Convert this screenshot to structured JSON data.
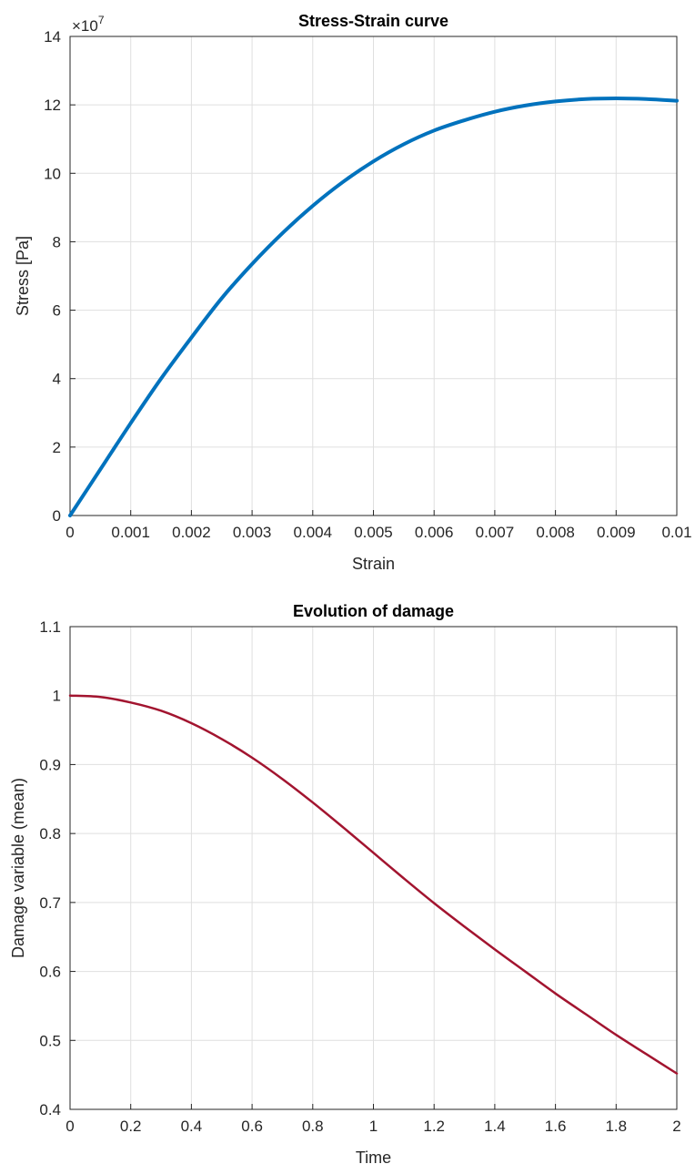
{
  "chart_data": [
    {
      "type": "line",
      "title": "Stress-Strain curve",
      "xlabel": "Strain",
      "ylabel": "Stress [Pa]",
      "y_exponent_label": "×10",
      "y_exponent": "7",
      "xlim": [
        0,
        0.01
      ],
      "ylim": [
        0,
        14
      ],
      "y_scale_factor": 10000000,
      "xticks": [
        "0",
        "0.001",
        "0.002",
        "0.003",
        "0.004",
        "0.005",
        "0.006",
        "0.007",
        "0.008",
        "0.009",
        "0.01"
      ],
      "yticks": [
        "0",
        "2",
        "4",
        "6",
        "8",
        "10",
        "12",
        "14"
      ],
      "grid": true,
      "series": [
        {
          "color": "#0072BD",
          "x": [
            0,
            0.0005,
            0.001,
            0.0015,
            0.002,
            0.0025,
            0.003,
            0.0035,
            0.004,
            0.0045,
            0.005,
            0.0055,
            0.006,
            0.0065,
            0.007,
            0.0075,
            0.008,
            0.0085,
            0.009,
            0.0095,
            0.01
          ],
          "y": [
            0,
            1.35,
            2.7,
            4.0,
            5.2,
            6.35,
            7.35,
            8.25,
            9.05,
            9.75,
            10.35,
            10.85,
            11.25,
            11.55,
            11.8,
            11.98,
            12.1,
            12.17,
            12.19,
            12.17,
            12.12
          ]
        }
      ]
    },
    {
      "type": "line",
      "title": "Evolution of damage",
      "xlabel": "Time",
      "ylabel": "Damage variable (mean)",
      "xlim": [
        0,
        2
      ],
      "ylim": [
        0.4,
        1.1
      ],
      "xticks": [
        "0",
        "0.2",
        "0.4",
        "0.6",
        "0.8",
        "1",
        "1.2",
        "1.4",
        "1.6",
        "1.8",
        "2"
      ],
      "yticks": [
        "0.4",
        "0.5",
        "0.6",
        "0.7",
        "0.8",
        "0.9",
        "1",
        "1.1"
      ],
      "grid": true,
      "series": [
        {
          "color": "#A2142F",
          "x": [
            0,
            0.1,
            0.2,
            0.3,
            0.4,
            0.5,
            0.6,
            0.7,
            0.8,
            0.9,
            1.0,
            1.1,
            1.2,
            1.3,
            1.4,
            1.5,
            1.6,
            1.7,
            1.8,
            1.9,
            2.0
          ],
          "y": [
            1.0,
            0.998,
            0.99,
            0.978,
            0.96,
            0.937,
            0.91,
            0.879,
            0.845,
            0.809,
            0.772,
            0.735,
            0.699,
            0.665,
            0.632,
            0.6,
            0.568,
            0.538,
            0.508,
            0.48,
            0.452
          ]
        }
      ]
    }
  ]
}
